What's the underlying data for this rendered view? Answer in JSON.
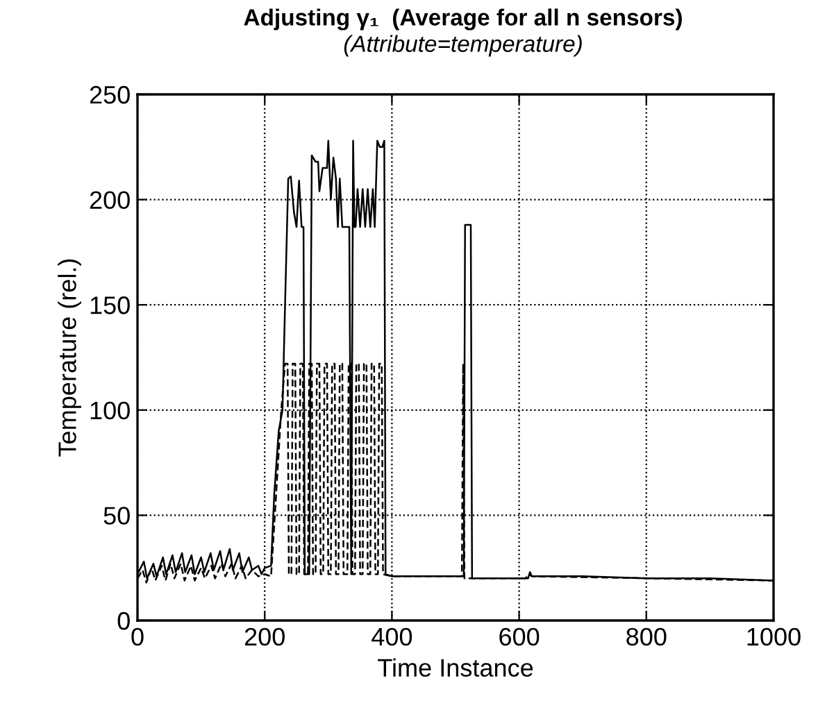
{
  "chart_data": {
    "type": "line",
    "title": "Adjusting γ₁  (Average for all n sensors)",
    "subtitle": "(Attribute=temperature)",
    "xlabel": "Time Instance",
    "ylabel": "Temperature (rel.)",
    "xlim": [
      0,
      1000
    ],
    "xticks": [
      0,
      200,
      400,
      600,
      800,
      1000
    ],
    "ylim": [
      0,
      250
    ],
    "yticks": [
      0,
      50,
      100,
      150,
      200,
      250
    ],
    "grid": true,
    "legend": false,
    "marker": "none",
    "series": [
      {
        "color": "#000000",
        "line_style": "solid",
        "x": [
          0,
          10,
          15,
          25,
          30,
          40,
          45,
          55,
          60,
          70,
          75,
          85,
          90,
          100,
          105,
          115,
          120,
          130,
          135,
          145,
          150,
          160,
          165,
          175,
          180,
          190,
          195,
          200,
          210,
          215,
          222,
          228,
          232,
          237,
          241,
          246,
          250,
          254,
          258,
          261,
          263,
          265,
          270,
          274,
          280,
          284,
          286,
          291,
          298,
          300,
          304,
          308,
          312,
          315,
          318,
          322,
          326,
          330,
          333,
          336,
          339,
          341,
          343,
          346,
          350,
          354,
          358,
          362,
          366,
          370,
          373,
          377,
          381,
          385,
          388,
          390,
          400,
          500,
          513,
          515,
          524,
          526,
          530,
          600,
          614,
          617,
          620,
          700,
          800,
          900,
          1000
        ],
        "values": [
          22,
          28,
          20,
          27,
          21,
          30,
          22,
          31,
          23,
          32,
          23,
          31,
          22,
          30,
          23,
          32,
          24,
          33,
          24,
          34,
          24,
          32,
          23,
          30,
          24,
          26,
          22,
          25,
          26,
          60,
          90,
          100,
          150,
          210,
          211,
          194,
          187,
          209,
          187,
          187,
          22,
          22,
          22,
          221,
          218,
          218,
          204,
          215,
          215,
          228,
          200,
          220,
          210,
          187,
          210,
          187,
          187,
          187,
          187,
          22,
          228,
          187,
          187,
          205,
          187,
          205,
          187,
          205,
          187,
          205,
          187,
          228,
          225,
          225,
          228,
          22,
          21,
          21,
          21,
          188,
          188,
          20,
          20,
          20,
          20,
          23,
          21,
          21,
          20,
          20,
          19
        ]
      },
      {
        "color": "#000000",
        "line_style": "dashed",
        "x": [
          0,
          8,
          14,
          22,
          28,
          38,
          44,
          52,
          58,
          68,
          74,
          84,
          90,
          100,
          106,
          116,
          122,
          132,
          138,
          148,
          154,
          164,
          170,
          180,
          190,
          200,
          210,
          218,
          226,
          232,
          236,
          238,
          242,
          244,
          248,
          250,
          254,
          256,
          260,
          262,
          268,
          270,
          274,
          276,
          280,
          282,
          286,
          288,
          292,
          294,
          298,
          300,
          304,
          306,
          310,
          312,
          316,
          318,
          322,
          324,
          330,
          332,
          336,
          338,
          342,
          344,
          348,
          350,
          354,
          356,
          360,
          362,
          366,
          368,
          372,
          374,
          378,
          380,
          384,
          386,
          400,
          510,
          512,
          514,
          610,
          615,
          620,
          1000
        ],
        "values": [
          20,
          24,
          18,
          25,
          19,
          26,
          19,
          27,
          20,
          27,
          19,
          26,
          19,
          25,
          20,
          26,
          20,
          27,
          21,
          27,
          20,
          26,
          20,
          24,
          21,
          22,
          21,
          60,
          100,
          122,
          122,
          22,
          22,
          122,
          122,
          22,
          22,
          122,
          122,
          22,
          22,
          122,
          122,
          22,
          22,
          122,
          122,
          22,
          22,
          122,
          122,
          22,
          22,
          122,
          122,
          22,
          22,
          122,
          122,
          22,
          22,
          122,
          122,
          22,
          22,
          122,
          122,
          22,
          22,
          122,
          122,
          22,
          22,
          122,
          122,
          22,
          22,
          122,
          122,
          22,
          21,
          21,
          122,
          20,
          20,
          22,
          21,
          19
        ]
      }
    ]
  }
}
